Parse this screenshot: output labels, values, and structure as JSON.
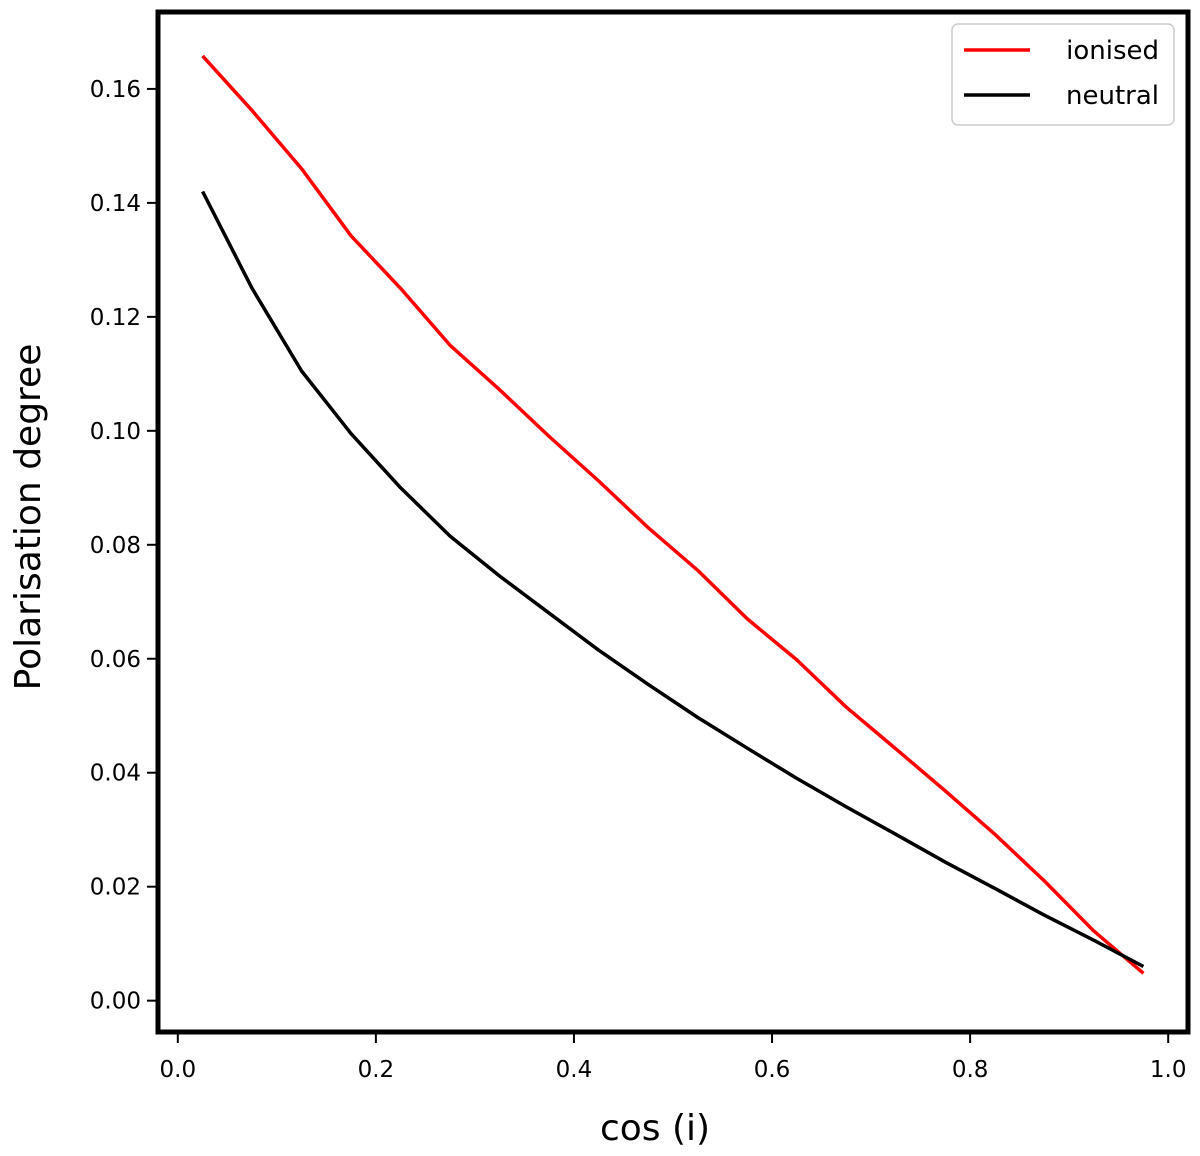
{
  "chart_data": {
    "type": "line",
    "title": "",
    "xlabel": "cos (i)",
    "ylabel": "Polarisation degree",
    "xlim": [
      -0.02,
      1.02
    ],
    "ylim": [
      -0.0055,
      0.1735
    ],
    "grid": false,
    "legend": {
      "placement": "top-right"
    },
    "x_ticks": [
      0.0,
      0.2,
      0.4,
      0.6,
      0.8,
      1.0
    ],
    "x_tick_labels": [
      "0.0",
      "0.2",
      "0.4",
      "0.6",
      "0.8",
      "1.0"
    ],
    "y_ticks": [
      0.0,
      0.02,
      0.04,
      0.06,
      0.08,
      0.1,
      0.12,
      0.14,
      0.16
    ],
    "y_tick_labels": [
      "0.00",
      "0.02",
      "0.04",
      "0.06",
      "0.08",
      "0.10",
      "0.12",
      "0.14",
      "0.16"
    ],
    "x": [
      0.025,
      0.075,
      0.125,
      0.175,
      0.225,
      0.275,
      0.325,
      0.375,
      0.425,
      0.475,
      0.525,
      0.575,
      0.625,
      0.675,
      0.725,
      0.775,
      0.825,
      0.875,
      0.925,
      0.975
    ],
    "series": [
      {
        "name": "ionised",
        "color": "#ff0000",
        "values": [
          0.1658,
          0.1562,
          0.146,
          0.1342,
          0.125,
          0.115,
          0.1072,
          0.099,
          0.0912,
          0.083,
          0.0755,
          0.067,
          0.0598,
          0.0515,
          0.0442,
          0.0368,
          0.0292,
          0.021,
          0.0122,
          0.0048
        ]
      },
      {
        "name": "neutral",
        "color": "#000000",
        "values": [
          0.142,
          0.125,
          0.1105,
          0.0995,
          0.09,
          0.0815,
          0.0745,
          0.068,
          0.0615,
          0.0555,
          0.0497,
          0.0443,
          0.039,
          0.034,
          0.0292,
          0.0243,
          0.0197,
          0.015,
          0.0106,
          0.006
        ]
      }
    ]
  }
}
